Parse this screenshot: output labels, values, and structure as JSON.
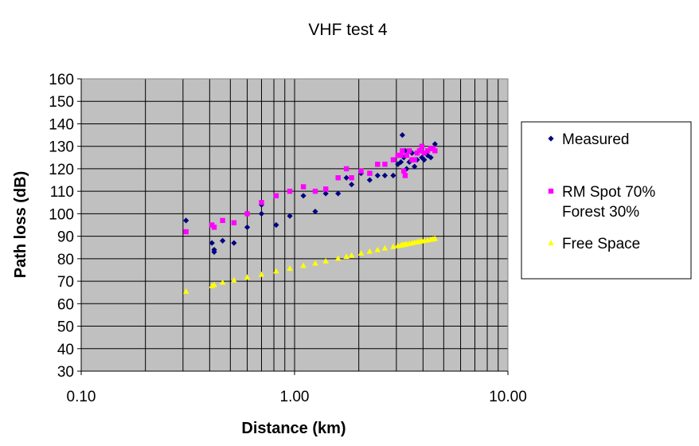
{
  "chart_data": {
    "type": "scatter",
    "title": "VHF test 4",
    "xlabel": "Distance (km)",
    "ylabel": "Path loss (dB)",
    "x_scale": "log",
    "xlim": [
      0.1,
      10
    ],
    "ylim": [
      30,
      160
    ],
    "x_ticks": [
      0.1,
      1,
      10
    ],
    "x_tick_labels": [
      "0.10",
      "1.00",
      "10.00"
    ],
    "y_ticks": [
      30,
      40,
      50,
      60,
      70,
      80,
      90,
      100,
      110,
      120,
      130,
      140,
      150,
      160
    ],
    "y_tick_labels": [
      "30",
      "40",
      "50",
      "60",
      "70",
      "80",
      "90",
      "100",
      "110",
      "120",
      "130",
      "140",
      "150",
      "160"
    ],
    "grid": true,
    "plot_background": "#c0c0c0",
    "legend_position": "right",
    "series": [
      {
        "name": "Measured",
        "marker": "diamond",
        "color": "#000080",
        "points": [
          [
            0.31,
            97
          ],
          [
            0.41,
            87
          ],
          [
            0.42,
            84
          ],
          [
            0.42,
            83
          ],
          [
            0.46,
            88
          ],
          [
            0.52,
            87
          ],
          [
            0.6,
            94
          ],
          [
            0.7,
            100
          ],
          [
            0.7,
            104
          ],
          [
            0.82,
            95
          ],
          [
            0.95,
            99
          ],
          [
            1.1,
            108
          ],
          [
            1.25,
            101
          ],
          [
            1.4,
            109
          ],
          [
            1.6,
            109
          ],
          [
            1.75,
            116
          ],
          [
            1.85,
            113
          ],
          [
            2.05,
            118
          ],
          [
            2.25,
            115
          ],
          [
            2.45,
            117
          ],
          [
            2.65,
            117
          ],
          [
            2.9,
            117
          ],
          [
            3.05,
            122
          ],
          [
            3.15,
            123
          ],
          [
            3.2,
            135
          ],
          [
            3.25,
            125
          ],
          [
            3.3,
            128
          ],
          [
            3.35,
            120
          ],
          [
            3.45,
            123
          ],
          [
            3.55,
            127
          ],
          [
            3.65,
            121
          ],
          [
            3.75,
            124
          ],
          [
            3.85,
            128
          ],
          [
            3.95,
            125
          ],
          [
            4.05,
            124
          ],
          [
            4.2,
            126
          ],
          [
            4.35,
            125
          ],
          [
            4.45,
            129
          ],
          [
            4.55,
            131
          ]
        ]
      },
      {
        "name": "RM Spot 70% Forest 30%",
        "marker": "square",
        "color": "#ff00ff",
        "points": [
          [
            0.31,
            92
          ],
          [
            0.41,
            95
          ],
          [
            0.42,
            94
          ],
          [
            0.46,
            97
          ],
          [
            0.52,
            96
          ],
          [
            0.6,
            100
          ],
          [
            0.7,
            105
          ],
          [
            0.82,
            108
          ],
          [
            0.95,
            110
          ],
          [
            1.1,
            112
          ],
          [
            1.25,
            110
          ],
          [
            1.4,
            111
          ],
          [
            1.6,
            116
          ],
          [
            1.75,
            120
          ],
          [
            1.85,
            116
          ],
          [
            2.05,
            119
          ],
          [
            2.25,
            118
          ],
          [
            2.45,
            122
          ],
          [
            2.65,
            122
          ],
          [
            2.9,
            124
          ],
          [
            3.05,
            126
          ],
          [
            3.15,
            126
          ],
          [
            3.2,
            128
          ],
          [
            3.25,
            119
          ],
          [
            3.3,
            117
          ],
          [
            3.35,
            126
          ],
          [
            3.45,
            128
          ],
          [
            3.55,
            124
          ],
          [
            3.65,
            124
          ],
          [
            3.75,
            127
          ],
          [
            3.85,
            128
          ],
          [
            3.95,
            130
          ],
          [
            4.05,
            127
          ],
          [
            4.2,
            128
          ],
          [
            4.35,
            129
          ],
          [
            4.45,
            129
          ],
          [
            4.55,
            128
          ]
        ]
      },
      {
        "name": "Free Space",
        "marker": "triangle",
        "color": "#ffff00",
        "points": [
          [
            0.31,
            65.5
          ],
          [
            0.41,
            68
          ],
          [
            0.42,
            68.5
          ],
          [
            0.46,
            69.5
          ],
          [
            0.52,
            70.5
          ],
          [
            0.6,
            71.8
          ],
          [
            0.7,
            73
          ],
          [
            0.82,
            74.5
          ],
          [
            0.95,
            75.7
          ],
          [
            1.1,
            77
          ],
          [
            1.25,
            78
          ],
          [
            1.4,
            79
          ],
          [
            1.6,
            80.2
          ],
          [
            1.75,
            81
          ],
          [
            1.85,
            81.5
          ],
          [
            2.05,
            82.5
          ],
          [
            2.25,
            83.3
          ],
          [
            2.45,
            84
          ],
          [
            2.65,
            84.7
          ],
          [
            2.9,
            85.4
          ],
          [
            3.05,
            85.8
          ],
          [
            3.15,
            86
          ],
          [
            3.2,
            86.2
          ],
          [
            3.25,
            86.3
          ],
          [
            3.3,
            86.4
          ],
          [
            3.35,
            86.6
          ],
          [
            3.45,
            86.8
          ],
          [
            3.55,
            87
          ],
          [
            3.65,
            87.3
          ],
          [
            3.75,
            87.5
          ],
          [
            3.85,
            87.7
          ],
          [
            3.95,
            87.9
          ],
          [
            4.05,
            88.1
          ],
          [
            4.2,
            88.3
          ],
          [
            4.35,
            88.6
          ],
          [
            4.45,
            88.8
          ],
          [
            4.55,
            89
          ]
        ]
      }
    ]
  }
}
